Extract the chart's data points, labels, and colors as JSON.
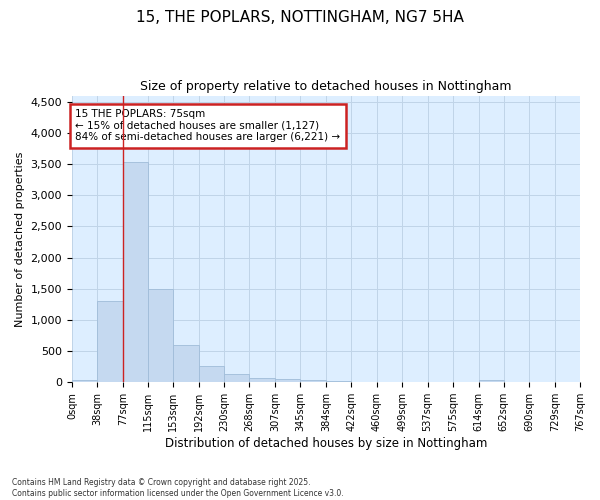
{
  "title_line1": "15, THE POPLARS, NOTTINGHAM, NG7 5HA",
  "title_line2": "Size of property relative to detached houses in Nottingham",
  "xlabel": "Distribution of detached houses by size in Nottingham",
  "ylabel": "Number of detached properties",
  "bar_color": "#c5d9f0",
  "bar_edge_color": "#a0bcd8",
  "vline_color": "#cc2222",
  "vline_x": 77,
  "annotation_text": "15 THE POPLARS: 75sqm\n← 15% of detached houses are smaller (1,127)\n84% of semi-detached houses are larger (6,221) →",
  "annotation_box_color": "#cc2222",
  "bin_edges": [
    0,
    38,
    77,
    115,
    153,
    192,
    230,
    268,
    307,
    345,
    384,
    422,
    460,
    499,
    537,
    575,
    614,
    652,
    690,
    729,
    767
  ],
  "bar_heights": [
    30,
    1300,
    3530,
    1500,
    600,
    255,
    135,
    70,
    55,
    28,
    20,
    0,
    0,
    0,
    0,
    0,
    30,
    0,
    0,
    0
  ],
  "ylim": [
    0,
    4600
  ],
  "yticks": [
    0,
    500,
    1000,
    1500,
    2000,
    2500,
    3000,
    3500,
    4000,
    4500
  ],
  "grid_color": "#c0d4e8",
  "background_color": "#ddeeff",
  "footnote": "Contains HM Land Registry data © Crown copyright and database right 2025.\nContains public sector information licensed under the Open Government Licence v3.0.",
  "tick_labels": [
    "0sqm",
    "38sqm",
    "77sqm",
    "115sqm",
    "153sqm",
    "192sqm",
    "230sqm",
    "268sqm",
    "307sqm",
    "345sqm",
    "384sqm",
    "422sqm",
    "460sqm",
    "499sqm",
    "537sqm",
    "575sqm",
    "614sqm",
    "652sqm",
    "690sqm",
    "729sqm",
    "767sqm"
  ]
}
